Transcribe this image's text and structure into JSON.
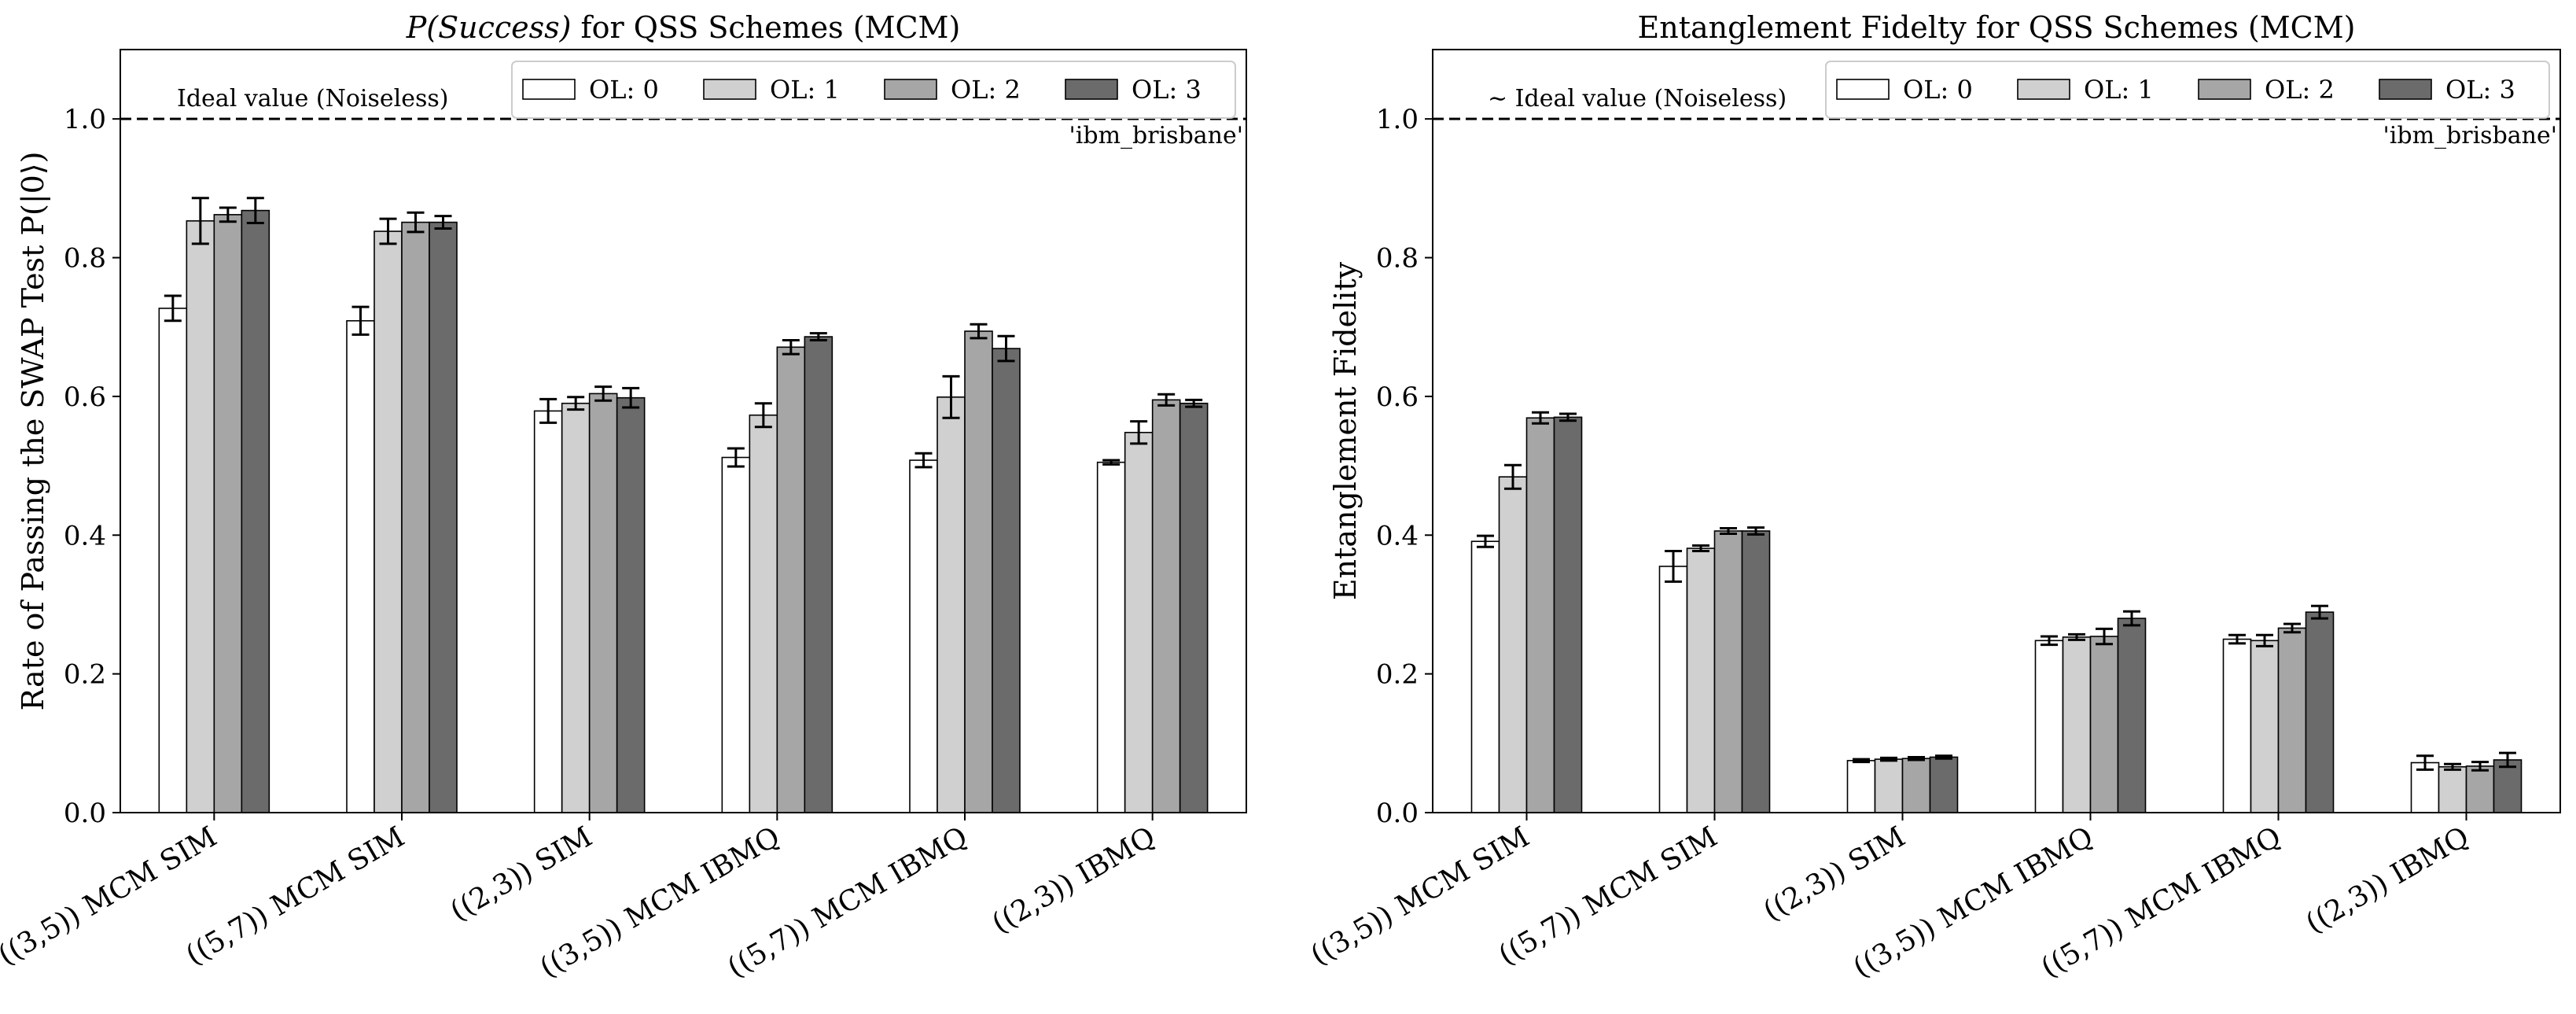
{
  "chart_data": [
    {
      "type": "bar",
      "title": "P(Success) for QSS Schemes (MCM)",
      "xlabel": "",
      "ylabel": "Rate of Passing the SWAP Test P(|0⟩)",
      "ylim": [
        0,
        1.1
      ],
      "yticks": [
        "0.0",
        "0.2",
        "0.4",
        "0.6",
        "0.8",
        "1.0"
      ],
      "ideal_value": 1.0,
      "ideal_label": "Ideal value (Noiseless)",
      "backend_label": "'ibm_brisbane'",
      "legend_position": "top-right",
      "categories": [
        "((3,5)) MCM SIM",
        "((5,7)) MCM SIM",
        "((2,3)) SIM",
        "((3,5)) MCM IBMQ",
        "((5,7)) MCM IBMQ",
        "((2,3)) IBMQ"
      ],
      "series": [
        {
          "name": "OL: 0",
          "color": "#ffffff",
          "values": [
            0.727,
            0.709,
            0.579,
            0.512,
            0.508,
            0.505
          ],
          "errors": [
            0.018,
            0.02,
            0.017,
            0.013,
            0.01,
            0.003
          ]
        },
        {
          "name": "OL: 1",
          "color": "#d0d0d0",
          "values": [
            0.853,
            0.838,
            0.59,
            0.573,
            0.599,
            0.548
          ],
          "errors": [
            0.033,
            0.018,
            0.009,
            0.017,
            0.03,
            0.016
          ]
        },
        {
          "name": "OL: 2",
          "color": "#a6a6a6",
          "values": [
            0.862,
            0.851,
            0.604,
            0.671,
            0.694,
            0.595
          ],
          "errors": [
            0.01,
            0.014,
            0.01,
            0.01,
            0.01,
            0.008
          ]
        },
        {
          "name": "OL: 3",
          "color": "#6b6b6b",
          "values": [
            0.868,
            0.851,
            0.598,
            0.686,
            0.669,
            0.59
          ],
          "errors": [
            0.018,
            0.009,
            0.014,
            0.005,
            0.018,
            0.005
          ]
        }
      ]
    },
    {
      "type": "bar",
      "title": "Entanglement Fidelty for QSS Schemes (MCM)",
      "xlabel": "",
      "ylabel": "Entanglement Fidelity",
      "ylim": [
        0,
        1.1
      ],
      "yticks": [
        "0.0",
        "0.2",
        "0.4",
        "0.6",
        "0.8",
        "1.0"
      ],
      "ideal_value": 1.0,
      "ideal_label": "∼ Ideal value (Noiseless)",
      "backend_label": "'ibm_brisbane'",
      "legend_position": "top-right",
      "categories": [
        "((3,5)) MCM SIM",
        "((5,7)) MCM SIM",
        "((2,3)) SIM",
        "((3,5)) MCM IBMQ",
        "((5,7)) MCM IBMQ",
        "((2,3)) IBMQ"
      ],
      "series": [
        {
          "name": "OL: 0",
          "color": "#ffffff",
          "values": [
            0.391,
            0.355,
            0.075,
            0.248,
            0.25,
            0.072
          ],
          "errors": [
            0.008,
            0.022,
            0.002,
            0.006,
            0.006,
            0.01
          ]
        },
        {
          "name": "OL: 1",
          "color": "#d0d0d0",
          "values": [
            0.484,
            0.381,
            0.077,
            0.253,
            0.248,
            0.066
          ],
          "errors": [
            0.017,
            0.004,
            0.002,
            0.004,
            0.008,
            0.004
          ]
        },
        {
          "name": "OL: 2",
          "color": "#a6a6a6",
          "values": [
            0.569,
            0.406,
            0.078,
            0.254,
            0.266,
            0.067
          ],
          "errors": [
            0.008,
            0.004,
            0.002,
            0.011,
            0.006,
            0.006
          ]
        },
        {
          "name": "OL: 3",
          "color": "#6b6b6b",
          "values": [
            0.57,
            0.406,
            0.08,
            0.28,
            0.289,
            0.076
          ],
          "errors": [
            0.005,
            0.005,
            0.002,
            0.01,
            0.009,
            0.01
          ]
        }
      ]
    }
  ]
}
